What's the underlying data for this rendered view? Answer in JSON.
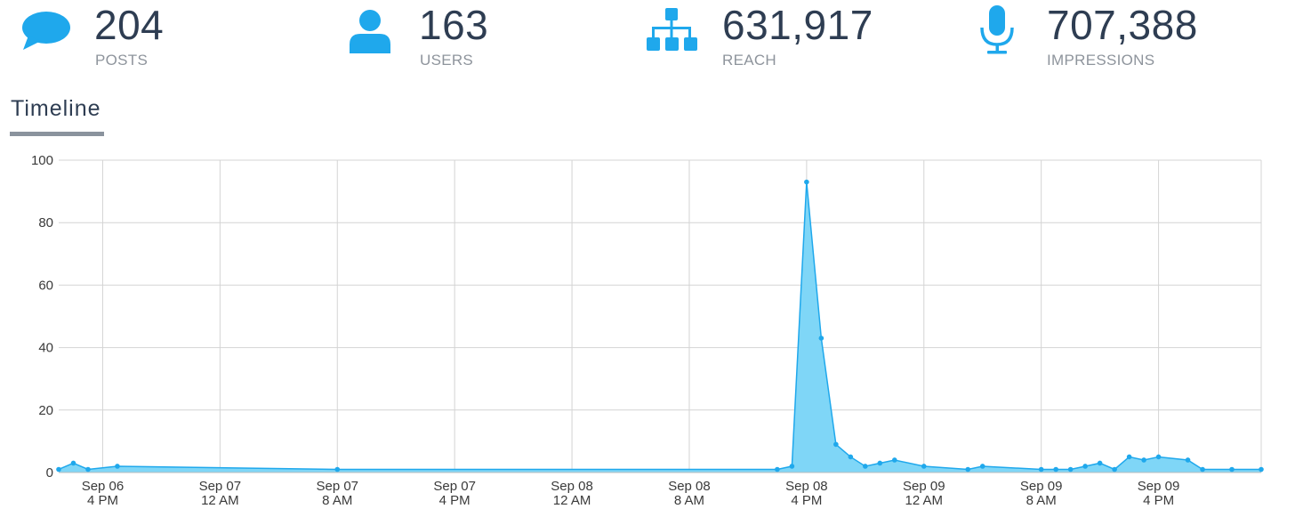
{
  "stats": [
    {
      "value": "204",
      "label": "POSTS",
      "icon": "speech-bubble-icon"
    },
    {
      "value": "163",
      "label": "USERS",
      "icon": "user-icon"
    },
    {
      "value": "631,917",
      "label": "REACH",
      "icon": "hierarchy-icon"
    },
    {
      "value": "707,388",
      "label": "IMPRESSIONS",
      "icon": "microphone-icon"
    }
  ],
  "section": {
    "title": "Timeline"
  },
  "colors": {
    "accent": "#1fa8ec",
    "area_fill": "#7fd6f7",
    "grid": "#d4d4d4",
    "text_dark": "#2e3d52",
    "text_muted": "#8e949c"
  },
  "chart_data": {
    "type": "area",
    "title": "",
    "xlabel": "",
    "ylabel": "",
    "ylim": [
      0,
      100
    ],
    "yticks": [
      0,
      20,
      40,
      60,
      80,
      100
    ],
    "xlim": [
      "2023-09-06T13:00",
      "2023-09-09T23:00"
    ],
    "x_tick_labels": [
      {
        "at": "2023-09-06T16:00",
        "line1": "Sep 06",
        "line2": "4 PM"
      },
      {
        "at": "2023-09-07T00:00",
        "line1": "Sep 07",
        "line2": "12 AM"
      },
      {
        "at": "2023-09-07T08:00",
        "line1": "Sep 07",
        "line2": "8 AM"
      },
      {
        "at": "2023-09-07T16:00",
        "line1": "Sep 07",
        "line2": "4 PM"
      },
      {
        "at": "2023-09-08T00:00",
        "line1": "Sep 08",
        "line2": "12 AM"
      },
      {
        "at": "2023-09-08T08:00",
        "line1": "Sep 08",
        "line2": "8 AM"
      },
      {
        "at": "2023-09-08T16:00",
        "line1": "Sep 08",
        "line2": "4 PM"
      },
      {
        "at": "2023-09-09T00:00",
        "line1": "Sep 09",
        "line2": "12 AM"
      },
      {
        "at": "2023-09-09T08:00",
        "line1": "Sep 09",
        "line2": "8 AM"
      },
      {
        "at": "2023-09-09T16:00",
        "line1": "Sep 09",
        "line2": "4 PM"
      }
    ],
    "grid": true,
    "legend": "none",
    "series": [
      {
        "x": [
          "2023-09-06T13:00",
          "2023-09-06T14:00",
          "2023-09-06T15:00",
          "2023-09-06T17:00",
          "2023-09-07T08:00",
          "2023-09-08T14:00",
          "2023-09-08T15:00",
          "2023-09-08T16:00",
          "2023-09-08T17:00",
          "2023-09-08T18:00",
          "2023-09-08T19:00",
          "2023-09-08T20:00",
          "2023-09-08T21:00",
          "2023-09-08T22:00",
          "2023-09-09T00:00",
          "2023-09-09T03:00",
          "2023-09-09T04:00",
          "2023-09-09T08:00",
          "2023-09-09T09:00",
          "2023-09-09T10:00",
          "2023-09-09T11:00",
          "2023-09-09T12:00",
          "2023-09-09T13:00",
          "2023-09-09T14:00",
          "2023-09-09T15:00",
          "2023-09-09T16:00",
          "2023-09-09T18:00",
          "2023-09-09T19:00",
          "2023-09-09T21:00",
          "2023-09-09T23:00"
        ],
        "y": [
          1,
          3,
          1,
          2,
          1,
          1,
          2,
          93,
          43,
          9,
          5,
          2,
          3,
          4,
          2,
          1,
          2,
          1,
          1,
          1,
          2,
          3,
          1,
          5,
          4,
          5,
          4,
          1,
          1,
          1
        ]
      }
    ]
  }
}
